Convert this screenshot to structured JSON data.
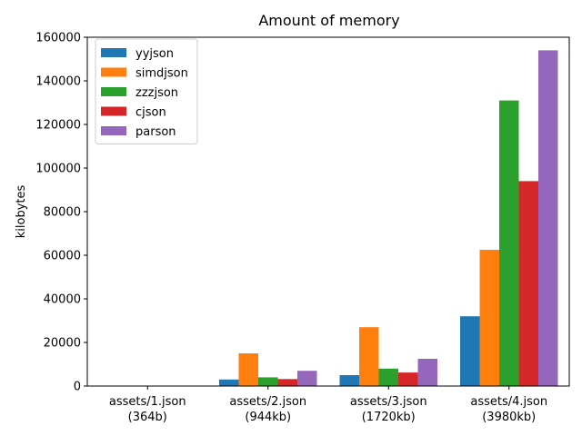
{
  "chart_data": {
    "type": "bar",
    "title": "Amount of memory",
    "xlabel": "",
    "ylabel": "kilobytes",
    "ylim": [
      0,
      160000
    ],
    "yticks": [
      0,
      20000,
      40000,
      60000,
      80000,
      100000,
      120000,
      140000,
      160000
    ],
    "categories": [
      [
        "assets/1.json",
        "(364b)"
      ],
      [
        "assets/2.json",
        "(944kb)"
      ],
      [
        "assets/3.json",
        "(1720kb)"
      ],
      [
        "assets/4.json",
        "(3980kb)"
      ]
    ],
    "series": [
      {
        "name": "yyjson",
        "color": "#1f77b4",
        "values": [
          2,
          3000,
          5000,
          32000
        ]
      },
      {
        "name": "simdjson",
        "color": "#ff7f0e",
        "values": [
          2,
          15000,
          27000,
          62500
        ]
      },
      {
        "name": "zzzjson",
        "color": "#2ca02c",
        "values": [
          2,
          4000,
          8000,
          131000
        ]
      },
      {
        "name": "cjson",
        "color": "#d62728",
        "values": [
          2,
          3200,
          6200,
          94000
        ]
      },
      {
        "name": "parson",
        "color": "#9467bd",
        "values": [
          2,
          7000,
          12500,
          154000
        ]
      }
    ],
    "legend_position": "top-left",
    "grid": false
  }
}
